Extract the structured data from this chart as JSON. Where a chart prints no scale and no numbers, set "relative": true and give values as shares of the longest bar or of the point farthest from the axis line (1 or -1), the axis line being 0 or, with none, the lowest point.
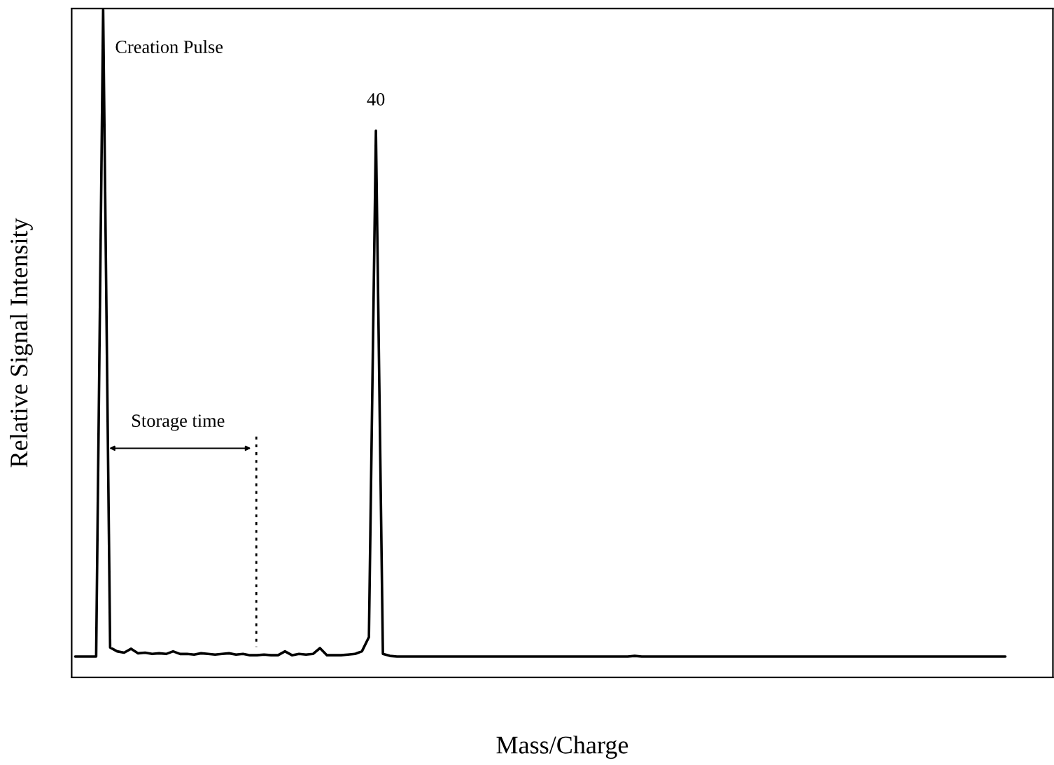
{
  "chart_data": {
    "type": "line",
    "relative": true,
    "xlabel": "Mass/Charge",
    "ylabel": "Relative Signal Intensity",
    "categories": [
      null,
      null,
      null,
      null,
      null,
      null,
      null,
      null,
      null,
      null,
      null,
      null,
      null,
      null,
      null,
      null,
      null,
      null,
      null,
      null,
      null,
      null,
      null,
      null,
      null,
      null,
      null,
      null,
      null,
      null,
      null,
      null,
      null,
      null,
      null,
      null,
      null,
      null,
      null,
      null,
      null,
      null,
      null,
      null,
      null,
      null,
      null,
      null,
      null,
      null,
      null,
      null,
      null,
      null,
      null,
      null,
      null,
      null,
      null,
      null,
      null,
      null,
      null,
      null,
      null,
      null,
      null,
      null,
      null,
      null,
      null,
      null,
      null,
      null,
      null,
      null,
      null,
      null,
      null,
      null,
      null,
      null,
      null,
      null,
      null,
      null,
      null,
      null,
      null,
      null,
      null,
      null,
      null,
      null,
      null,
      null,
      null,
      null,
      null,
      null,
      null,
      null,
      null,
      null,
      null,
      null,
      null,
      null,
      null,
      null,
      null,
      null,
      null,
      null,
      null,
      null,
      null,
      null,
      null,
      null,
      null,
      null,
      null,
      null,
      null,
      null,
      null,
      null,
      null,
      null,
      null,
      null,
      null,
      null
    ],
    "series": [
      {
        "color": "#000000",
        "values": [
          0,
          0,
          0,
          0,
          1,
          0.014,
          0.008,
          0.006,
          0.012,
          0.005,
          0.006,
          0.004,
          0.005,
          0.004,
          0.008,
          0.004,
          0.004,
          0.003,
          0.005,
          0.004,
          0.003,
          0.004,
          0.005,
          0.003,
          0.004,
          0.002,
          0.002,
          0.003,
          0.002,
          0.002,
          0.008,
          0.002,
          0.004,
          0.003,
          0.004,
          0.013,
          0.002,
          0.002,
          0.002,
          0.003,
          0.004,
          0.008,
          0.03,
          0.813,
          0.004,
          0.001,
          0,
          0,
          0,
          0,
          0,
          0,
          0,
          0,
          0,
          0,
          0,
          0,
          0,
          0,
          0,
          0,
          0,
          0,
          0,
          0,
          0,
          0,
          0,
          0,
          0,
          0,
          0,
          0,
          0,
          0,
          0,
          0,
          0,
          0,
          0.001,
          0,
          0,
          0,
          0,
          0,
          0,
          0,
          0,
          0,
          0,
          0,
          0,
          0,
          0,
          0,
          0,
          0,
          0,
          0,
          0,
          0,
          0,
          0,
          0,
          0,
          0,
          0,
          0,
          0,
          0,
          0,
          0,
          0,
          0,
          0,
          0,
          0,
          0,
          0,
          0,
          0,
          0,
          0,
          0,
          0,
          0,
          0,
          0,
          0,
          0,
          0,
          0,
          0
        ]
      }
    ],
    "annotations": [
      "Creation Pulse",
      {
        "text": "40",
        "y": 0.813
      },
      "Storage time"
    ],
    "grid": false,
    "marker": "none",
    "line_style": "solid",
    "tick_labels": false
  }
}
